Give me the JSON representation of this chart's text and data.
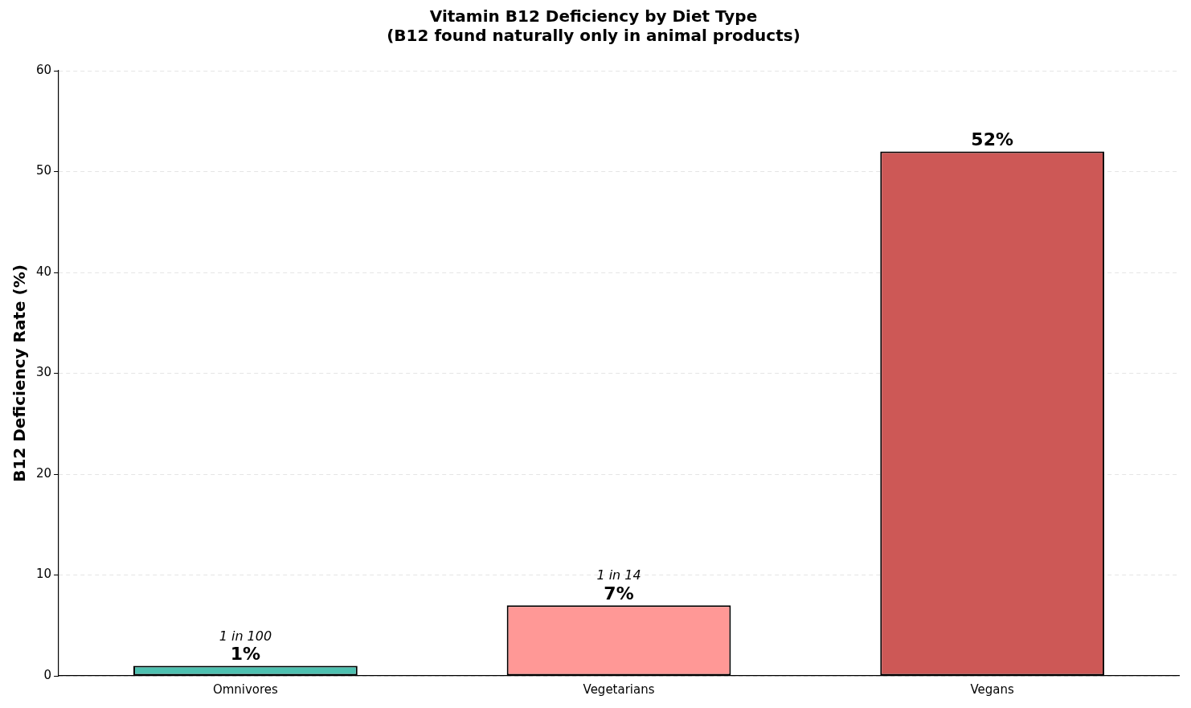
{
  "chart_data": {
    "type": "bar",
    "title": "Vitamin B12 Deficiency by Diet Type\n(B12 found naturally only in animal products)",
    "ylabel": "B12 Deficiency Rate (%)",
    "categories": [
      "Omnivores",
      "Vegetarians",
      "Vegans"
    ],
    "values": [
      1,
      7,
      52
    ],
    "colors": [
      "#4dc0b0",
      "#ff9896",
      "#cd5856"
    ],
    "value_labels": [
      "1%",
      "7%",
      "52%"
    ],
    "annotations": [
      {
        "text": "1 in 100",
        "x": "Omnivores",
        "y": 1
      },
      {
        "text": "1 in 14",
        "x": "Vegetarians",
        "y": 7
      }
    ],
    "ylim": [
      0,
      60
    ],
    "yticks": [
      0,
      10,
      20,
      30,
      40,
      50,
      60
    ],
    "grid": "y",
    "legend": false
  }
}
